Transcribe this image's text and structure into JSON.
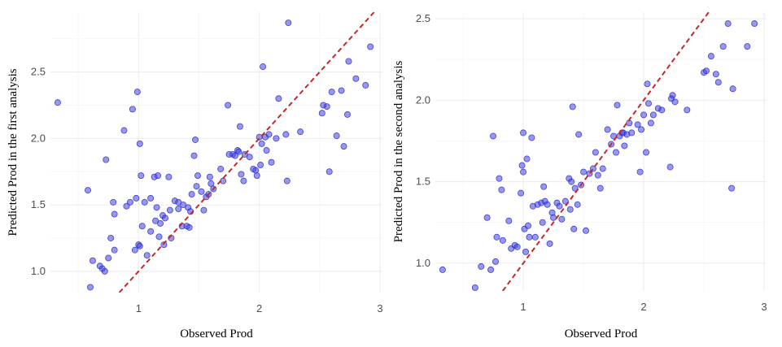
{
  "colors": {
    "point": "#4a4ad6",
    "reference_line": "#c62828",
    "grid": "#ebebeb"
  },
  "chart_data": [
    {
      "type": "scatter",
      "xlabel": "Observed Prod",
      "ylabel": "Predicted Prod in the first analysis",
      "xlim": [
        0.27,
        3.02
      ],
      "ylim": [
        0.84,
        2.95
      ],
      "xticks": [
        1,
        2,
        3
      ],
      "yticks": [
        1.0,
        1.5,
        2.0,
        2.5
      ],
      "grid": true,
      "legend": "none",
      "reference_line": {
        "style": "dashed",
        "slope": 1,
        "intercept": 0
      },
      "points": [
        [
          0.33,
          2.27
        ],
        [
          0.58,
          1.61
        ],
        [
          0.6,
          0.88
        ],
        [
          0.62,
          1.08
        ],
        [
          0.68,
          1.04
        ],
        [
          0.7,
          1.02
        ],
        [
          0.72,
          1.0
        ],
        [
          0.73,
          1.84
        ],
        [
          0.75,
          1.1
        ],
        [
          0.77,
          1.25
        ],
        [
          0.79,
          1.52
        ],
        [
          0.8,
          1.43
        ],
        [
          0.8,
          1.16
        ],
        [
          0.88,
          2.06
        ],
        [
          0.9,
          1.49
        ],
        [
          0.93,
          1.52
        ],
        [
          0.95,
          2.22
        ],
        [
          0.97,
          1.16
        ],
        [
          0.98,
          1.55
        ],
        [
          0.99,
          2.35
        ],
        [
          1.0,
          1.2
        ],
        [
          1.01,
          1.19
        ],
        [
          1.01,
          1.96
        ],
        [
          1.02,
          1.72
        ],
        [
          1.03,
          1.34
        ],
        [
          1.05,
          1.52
        ],
        [
          1.07,
          1.12
        ],
        [
          1.1,
          1.55
        ],
        [
          1.1,
          1.3
        ],
        [
          1.13,
          1.71
        ],
        [
          1.14,
          1.38
        ],
        [
          1.15,
          1.48
        ],
        [
          1.16,
          1.72
        ],
        [
          1.17,
          1.26
        ],
        [
          1.18,
          1.36
        ],
        [
          1.2,
          1.42
        ],
        [
          1.21,
          1.2
        ],
        [
          1.22,
          1.4
        ],
        [
          1.25,
          1.71
        ],
        [
          1.26,
          1.46
        ],
        [
          1.27,
          1.25
        ],
        [
          1.3,
          1.53
        ],
        [
          1.33,
          1.52
        ],
        [
          1.33,
          1.47
        ],
        [
          1.36,
          1.34
        ],
        [
          1.37,
          1.5
        ],
        [
          1.4,
          1.34
        ],
        [
          1.41,
          1.48
        ],
        [
          1.42,
          1.33
        ],
        [
          1.43,
          1.45
        ],
        [
          1.44,
          1.58
        ],
        [
          1.46,
          1.87
        ],
        [
          1.47,
          1.99
        ],
        [
          1.48,
          1.64
        ],
        [
          1.49,
          1.72
        ],
        [
          1.52,
          1.6
        ],
        [
          1.54,
          1.46
        ],
        [
          1.56,
          1.56
        ],
        [
          1.58,
          1.58
        ],
        [
          1.59,
          1.71
        ],
        [
          1.6,
          1.66
        ],
        [
          1.62,
          1.62
        ],
        [
          1.68,
          1.77
        ],
        [
          1.7,
          1.68
        ],
        [
          1.74,
          2.25
        ],
        [
          1.75,
          1.88
        ],
        [
          1.78,
          1.88
        ],
        [
          1.8,
          1.87
        ],
        [
          1.82,
          1.91
        ],
        [
          1.83,
          1.9
        ],
        [
          1.84,
          2.09
        ],
        [
          1.85,
          1.73
        ],
        [
          1.87,
          1.68
        ],
        [
          1.88,
          1.88
        ],
        [
          1.92,
          1.86
        ],
        [
          1.95,
          1.77
        ],
        [
          1.97,
          1.76
        ],
        [
          1.98,
          1.72
        ],
        [
          2.0,
          2.01
        ],
        [
          2.01,
          1.8
        ],
        [
          2.02,
          1.96
        ],
        [
          2.03,
          2.54
        ],
        [
          2.05,
          2.01
        ],
        [
          2.06,
          1.91
        ],
        [
          2.08,
          2.03
        ],
        [
          2.1,
          1.82
        ],
        [
          2.14,
          2.0
        ],
        [
          2.16,
          2.3
        ],
        [
          2.22,
          2.03
        ],
        [
          2.23,
          1.68
        ],
        [
          2.24,
          2.87
        ],
        [
          2.34,
          2.05
        ],
        [
          2.52,
          2.19
        ],
        [
          2.53,
          2.25
        ],
        [
          2.56,
          2.24
        ],
        [
          2.58,
          1.75
        ],
        [
          2.6,
          2.35
        ],
        [
          2.64,
          2.02
        ],
        [
          2.68,
          2.36
        ],
        [
          2.7,
          1.94
        ],
        [
          2.73,
          2.18
        ],
        [
          2.74,
          2.58
        ],
        [
          2.8,
          2.45
        ],
        [
          2.88,
          2.4
        ],
        [
          2.92,
          2.69
        ]
      ]
    },
    {
      "type": "scatter",
      "xlabel": "Observed Prod",
      "ylabel": "Predicted Prod in the second analysis",
      "xlim": [
        0.27,
        3.02
      ],
      "ylim": [
        0.83,
        2.54
      ],
      "xticks": [
        1,
        2,
        3
      ],
      "yticks": [
        1.0,
        1.5,
        2.0,
        2.5
      ],
      "grid": true,
      "legend": "none",
      "reference_line": {
        "style": "dashed",
        "slope": 1,
        "intercept": 0
      },
      "points": [
        [
          0.33,
          0.96
        ],
        [
          0.6,
          0.85
        ],
        [
          0.65,
          0.98
        ],
        [
          0.7,
          1.28
        ],
        [
          0.73,
          0.96
        ],
        [
          0.75,
          1.78
        ],
        [
          0.77,
          1.01
        ],
        [
          0.78,
          1.16
        ],
        [
          0.8,
          1.52
        ],
        [
          0.82,
          1.45
        ],
        [
          0.83,
          1.14
        ],
        [
          0.88,
          1.26
        ],
        [
          0.9,
          1.09
        ],
        [
          0.93,
          1.11
        ],
        [
          0.95,
          1.1
        ],
        [
          0.98,
          1.43
        ],
        [
          0.99,
          1.6
        ],
        [
          1.0,
          1.56
        ],
        [
          1.0,
          1.8
        ],
        [
          1.01,
          1.21
        ],
        [
          1.02,
          1.07
        ],
        [
          1.03,
          1.64
        ],
        [
          1.04,
          1.23
        ],
        [
          1.05,
          1.16
        ],
        [
          1.07,
          1.77
        ],
        [
          1.08,
          1.35
        ],
        [
          1.1,
          1.16
        ],
        [
          1.12,
          1.36
        ],
        [
          1.15,
          1.37
        ],
        [
          1.16,
          1.25
        ],
        [
          1.17,
          1.47
        ],
        [
          1.18,
          1.38
        ],
        [
          1.2,
          1.36
        ],
        [
          1.22,
          1.12
        ],
        [
          1.24,
          1.31
        ],
        [
          1.25,
          1.28
        ],
        [
          1.28,
          1.37
        ],
        [
          1.3,
          1.35
        ],
        [
          1.32,
          1.27
        ],
        [
          1.35,
          1.38
        ],
        [
          1.38,
          1.52
        ],
        [
          1.39,
          1.33
        ],
        [
          1.4,
          1.5
        ],
        [
          1.41,
          1.96
        ],
        [
          1.42,
          1.21
        ],
        [
          1.43,
          1.46
        ],
        [
          1.45,
          1.36
        ],
        [
          1.46,
          1.79
        ],
        [
          1.48,
          1.48
        ],
        [
          1.5,
          1.56
        ],
        [
          1.52,
          1.2
        ],
        [
          1.55,
          1.55
        ],
        [
          1.58,
          1.58
        ],
        [
          1.6,
          1.68
        ],
        [
          1.62,
          1.54
        ],
        [
          1.64,
          1.46
        ],
        [
          1.66,
          1.58
        ],
        [
          1.7,
          1.82
        ],
        [
          1.73,
          1.73
        ],
        [
          1.75,
          1.78
        ],
        [
          1.77,
          1.68
        ],
        [
          1.78,
          1.97
        ],
        [
          1.8,
          1.78
        ],
        [
          1.82,
          1.8
        ],
        [
          1.83,
          1.8
        ],
        [
          1.84,
          1.72
        ],
        [
          1.86,
          1.79
        ],
        [
          1.88,
          1.86
        ],
        [
          1.9,
          1.8
        ],
        [
          1.95,
          1.85
        ],
        [
          1.97,
          1.56
        ],
        [
          1.98,
          1.82
        ],
        [
          2.0,
          1.91
        ],
        [
          2.02,
          1.68
        ],
        [
          2.03,
          2.1
        ],
        [
          2.04,
          1.98
        ],
        [
          2.06,
          1.86
        ],
        [
          2.08,
          1.91
        ],
        [
          2.12,
          1.95
        ],
        [
          2.15,
          1.94
        ],
        [
          2.22,
          1.59
        ],
        [
          2.23,
          2.01
        ],
        [
          2.24,
          2.03
        ],
        [
          2.26,
          1.99
        ],
        [
          2.36,
          1.94
        ],
        [
          2.5,
          2.17
        ],
        [
          2.52,
          2.18
        ],
        [
          2.56,
          2.27
        ],
        [
          2.6,
          2.16
        ],
        [
          2.62,
          2.11
        ],
        [
          2.66,
          2.33
        ],
        [
          2.7,
          2.47
        ],
        [
          2.73,
          1.46
        ],
        [
          2.74,
          2.07
        ],
        [
          2.86,
          2.33
        ],
        [
          2.92,
          2.47
        ]
      ]
    }
  ]
}
